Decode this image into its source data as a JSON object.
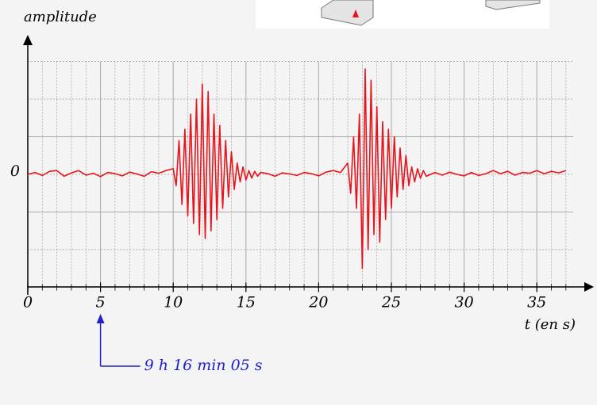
{
  "chart_data": {
    "type": "line",
    "y_label": "amplitude",
    "x_label": "t (en s)",
    "xlim": [
      0,
      37.5
    ],
    "ylim": [
      -3,
      3
    ],
    "xticks": [
      0,
      5,
      10,
      15,
      20,
      25,
      30,
      35
    ],
    "yticks": [
      0
    ],
    "xminor": 1,
    "yminor": 1,
    "grid": true,
    "annotation": {
      "text": "9 h 16 min 05 s",
      "x": 5,
      "color": "#2222cc"
    },
    "series": [
      {
        "color": "#e8141c",
        "x": [
          0,
          0.5,
          1,
          1.5,
          2,
          2.5,
          3,
          3.5,
          4,
          4.5,
          5,
          5.5,
          6,
          6.5,
          7,
          7.5,
          8,
          8.5,
          9,
          9.5,
          10,
          10.2,
          10.4,
          10.6,
          10.8,
          11,
          11.2,
          11.4,
          11.6,
          11.8,
          12,
          12.2,
          12.4,
          12.6,
          12.8,
          13,
          13.2,
          13.4,
          13.6,
          13.8,
          14,
          14.2,
          14.4,
          14.6,
          14.8,
          15,
          15.2,
          15.4,
          15.6,
          15.8,
          16,
          16.5,
          17,
          17.5,
          18,
          18.5,
          19,
          19.5,
          20,
          20.5,
          21,
          21.5,
          22,
          22.2,
          22.4,
          22.6,
          22.8,
          23,
          23.2,
          23.4,
          23.6,
          23.8,
          24,
          24.2,
          24.4,
          24.6,
          24.8,
          25,
          25.2,
          25.4,
          25.6,
          25.8,
          26,
          26.2,
          26.4,
          26.6,
          26.8,
          27,
          27.2,
          27.4,
          28,
          28.5,
          29,
          29.5,
          30,
          30.5,
          31,
          31.5,
          32,
          32.5,
          33,
          33.5,
          34,
          34.5,
          35,
          35.5,
          36,
          36.5,
          37
        ],
        "values": [
          0,
          0.05,
          -0.03,
          0.08,
          0.1,
          -0.05,
          0.04,
          0.1,
          -0.02,
          0.03,
          -0.06,
          0.05,
          0.02,
          -0.04,
          0.06,
          0.01,
          -0.05,
          0.07,
          0.03,
          0.1,
          0.15,
          -0.3,
          0.9,
          -0.8,
          1.2,
          -1.1,
          1.6,
          -1.3,
          2.0,
          -1.6,
          2.4,
          -1.7,
          2.2,
          -1.5,
          1.6,
          -1.2,
          1.3,
          -0.9,
          0.9,
          -0.6,
          0.6,
          -0.4,
          0.3,
          -0.2,
          0.2,
          -0.15,
          0.1,
          -0.1,
          0.08,
          -0.05,
          0.05,
          0.02,
          -0.05,
          0.04,
          0.01,
          -0.03,
          0.05,
          0.02,
          -0.04,
          0.06,
          0.1,
          0.05,
          0.3,
          -0.5,
          1.0,
          -0.9,
          1.6,
          -2.5,
          2.8,
          -2.0,
          2.5,
          -1.6,
          1.8,
          -1.8,
          1.4,
          -1.2,
          1.2,
          -0.9,
          1.0,
          -0.6,
          0.7,
          -0.4,
          0.5,
          -0.3,
          0.2,
          -0.2,
          0.15,
          -0.1,
          0.1,
          -0.05,
          0.05,
          -0.02,
          0.06,
          0,
          -0.04,
          0.05,
          -0.03,
          0.02,
          0.1,
          0.02,
          0.08,
          -0.02,
          0.05,
          0.03,
          0.1,
          0.02,
          0.08,
          0.04,
          0.1
        ]
      }
    ]
  }
}
